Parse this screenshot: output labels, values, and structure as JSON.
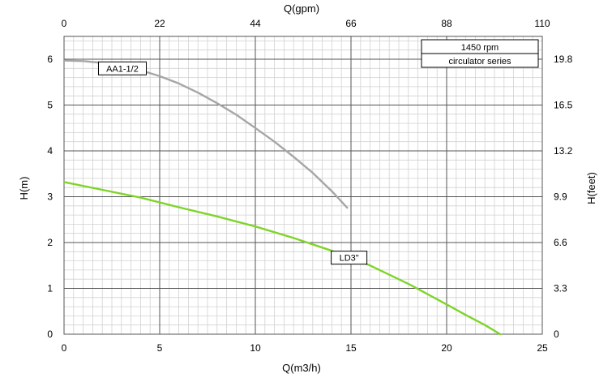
{
  "chart_data": {
    "type": "line",
    "xlabel": "Q(m3/h)",
    "ylabel": "H(m)",
    "x2label": "Q(gpm)",
    "y2label": "H(feet)",
    "xlim": [
      0,
      25
    ],
    "ylim": [
      0,
      6.5
    ],
    "x_ticks": [
      "0",
      "5",
      "10",
      "15",
      "20",
      "25"
    ],
    "y_ticks": [
      "0",
      "1",
      "2",
      "3",
      "4",
      "5",
      "6"
    ],
    "x2_ticks": [
      "0",
      "22",
      "44",
      "66",
      "88",
      "110"
    ],
    "y2_ticks": [
      "0",
      "3.3",
      "6.6",
      "9.9",
      "13.2",
      "16.5",
      "19.8"
    ],
    "grid": true,
    "legend_box": {
      "position": "top-right",
      "lines": [
        "1450 rpm",
        "circulator series"
      ]
    },
    "series": [
      {
        "name": "AA1-1/2",
        "color": "#a6a6a6",
        "x": [
          0,
          1,
          2,
          3,
          4,
          5,
          6,
          7,
          8,
          9,
          10,
          11,
          12,
          13,
          14,
          14.8
        ],
        "y": [
          5.97,
          5.96,
          5.92,
          5.85,
          5.76,
          5.63,
          5.47,
          5.27,
          5.04,
          4.79,
          4.5,
          4.2,
          3.87,
          3.52,
          3.12,
          2.76
        ]
      },
      {
        "name": "LD3\"",
        "color": "#7fd42a",
        "x": [
          0,
          2,
          4,
          6,
          8,
          10,
          12,
          14,
          16,
          18,
          20,
          21,
          22,
          22.8
        ],
        "y": [
          3.32,
          3.15,
          2.98,
          2.77,
          2.57,
          2.35,
          2.1,
          1.82,
          1.5,
          1.1,
          0.65,
          0.42,
          0.2,
          0
        ]
      }
    ],
    "series_label_anchor": [
      {
        "x": 3.05,
        "y": 5.8
      },
      {
        "x": 14.9,
        "y": 1.67
      }
    ]
  }
}
